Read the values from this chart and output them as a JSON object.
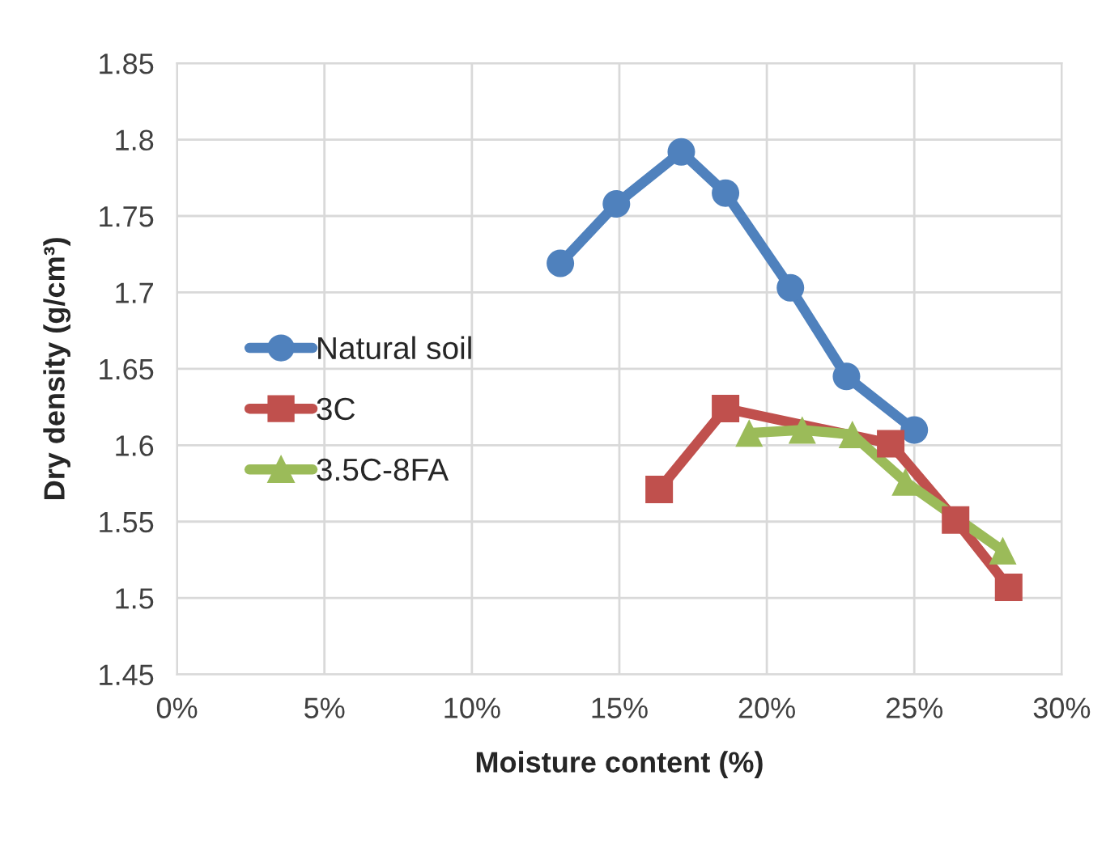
{
  "chart_data": {
    "type": "line",
    "xlabel": "Moisture content (%)",
    "ylabel": "Dry density (g/cm³)",
    "series": [
      {
        "name": "Natural soil",
        "color": "#4f81bd",
        "marker": "circle",
        "x": [
          13.0,
          14.9,
          17.1,
          18.6,
          20.8,
          22.7,
          25.0
        ],
        "values": [
          1.719,
          1.758,
          1.792,
          1.765,
          1.703,
          1.645,
          1.61
        ]
      },
      {
        "name": "3C",
        "color": "#c0504d",
        "marker": "square",
        "x": [
          16.35,
          18.6,
          24.2,
          26.4,
          28.2
        ],
        "values": [
          1.571,
          1.624,
          1.601,
          1.551,
          1.507
        ]
      },
      {
        "name": "3.5C-8FA",
        "color": "#9bbb59",
        "marker": "triangle",
        "x": [
          19.4,
          21.2,
          22.9,
          24.7,
          28.0
        ],
        "values": [
          1.608,
          1.61,
          1.607,
          1.576,
          1.531
        ]
      }
    ],
    "xlim": [
      0,
      30
    ],
    "xticks": [
      {
        "value": 0,
        "label": "0%"
      },
      {
        "value": 5,
        "label": "5%"
      },
      {
        "value": 10,
        "label": "10%"
      },
      {
        "value": 15,
        "label": "15%"
      },
      {
        "value": 20,
        "label": "20%"
      },
      {
        "value": 25,
        "label": "25%"
      },
      {
        "value": 30,
        "label": "30%"
      }
    ],
    "ylim": [
      1.45,
      1.85
    ],
    "yticks": [
      1.45,
      1.5,
      1.55,
      1.6,
      1.65,
      1.7,
      1.75,
      1.8,
      1.85
    ],
    "grid": true,
    "legend": "left",
    "line_style": "solid"
  }
}
